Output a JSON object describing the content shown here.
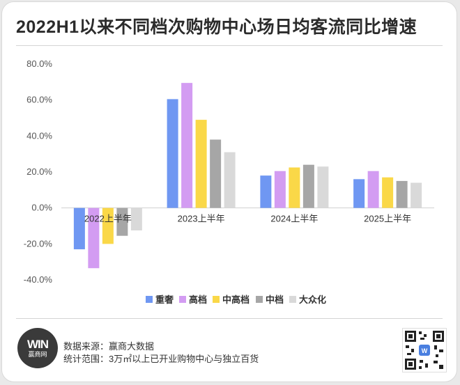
{
  "title": "2022H1以来不同档次购物中心场日均客流同比增速",
  "chart_data": {
    "type": "bar",
    "title": "2022H1以来不同档次购物中心场日均客流同比增速",
    "categories": [
      "2022上半年",
      "2023上半年",
      "2024上半年",
      "2025上半年"
    ],
    "series": [
      {
        "name": "重奢",
        "color": "#6f97f2",
        "values": [
          -23.0,
          60.5,
          18.0,
          16.0
        ]
      },
      {
        "name": "高档",
        "color": "#d39cf2",
        "values": [
          -33.5,
          69.5,
          20.5,
          20.5
        ]
      },
      {
        "name": "中高档",
        "color": "#fad848",
        "values": [
          -20.0,
          49.0,
          22.5,
          17.0
        ]
      },
      {
        "name": "中档",
        "color": "#a6a6a6",
        "values": [
          -15.5,
          38.0,
          24.0,
          15.0
        ]
      },
      {
        "name": "大众化",
        "color": "#d9d9d9",
        "values": [
          -12.5,
          31.0,
          23.0,
          14.0
        ]
      }
    ],
    "ylim": [
      -40,
      80
    ],
    "yticks": [
      "80.0%",
      "60.0%",
      "40.0%",
      "20.0%",
      "0.0%",
      "-20.0%",
      "-40.0%"
    ],
    "ytick_values": [
      80,
      60,
      40,
      20,
      0,
      -20,
      -40
    ],
    "legend_position": "bottom",
    "grid": false
  },
  "footer": {
    "source": "数据来源：赢商大数据",
    "scope": "统计范围：3万㎡以上已开业购物中心与独立百货",
    "logo_mark": "WIN",
    "logo_name": "赢商网"
  }
}
